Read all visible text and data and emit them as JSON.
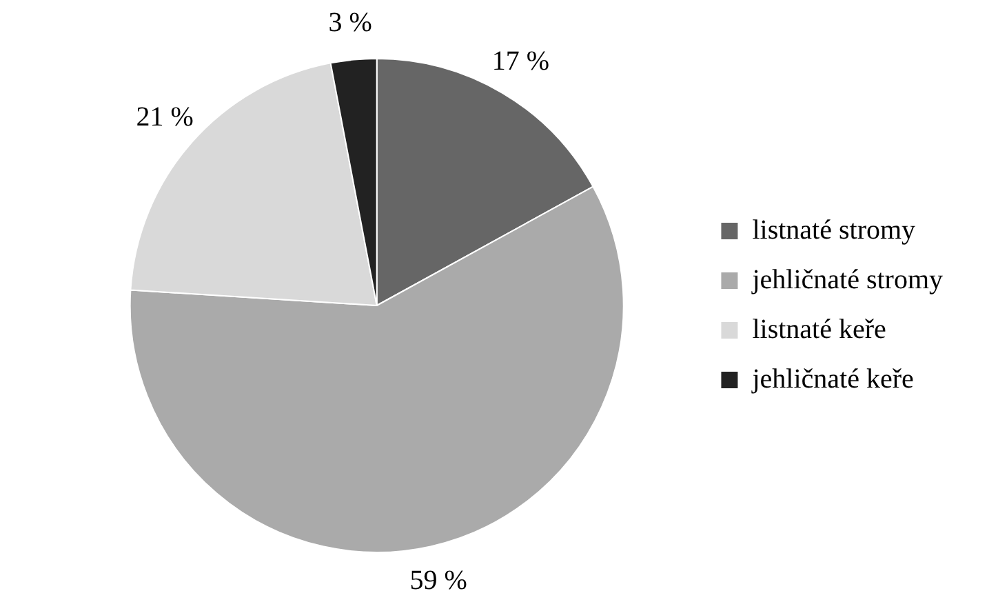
{
  "chart_data": {
    "type": "pie",
    "categories": [
      "listnaté stromy",
      "jehličnaté stromy",
      "listnaté keře",
      "jehličnaté keře"
    ],
    "values": [
      17,
      59,
      21,
      3
    ],
    "colors": [
      "#666666",
      "#aaaaaa",
      "#d9d9d9",
      "#222222"
    ],
    "value_labels": [
      "17 %",
      "59 %",
      "21 %",
      "3 %"
    ],
    "legend": "right"
  }
}
